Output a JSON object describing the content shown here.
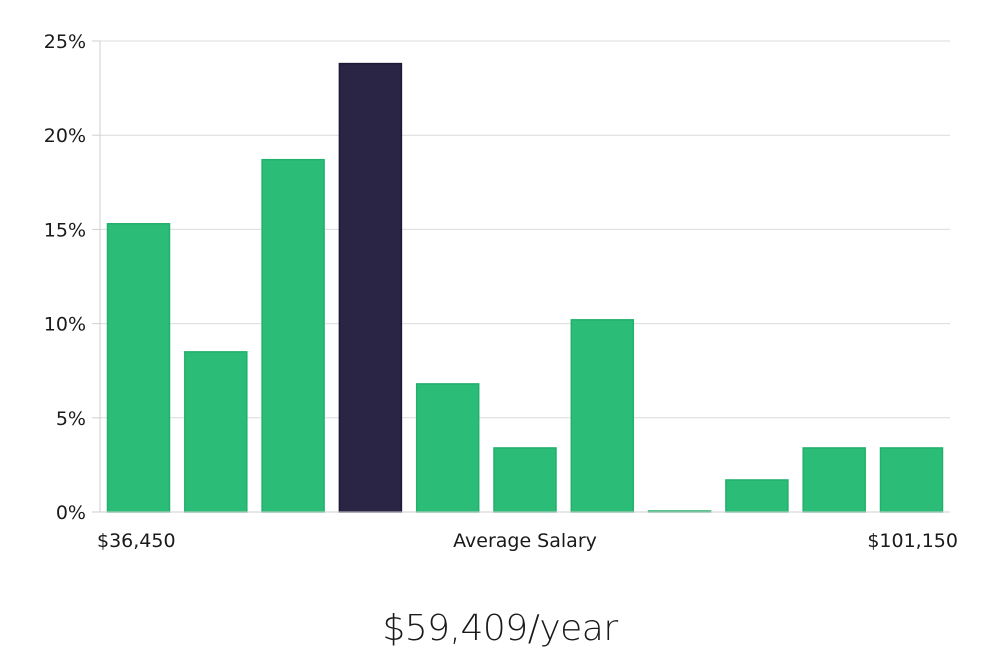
{
  "chart_data": {
    "type": "bar",
    "categories": [
      "",
      "",
      "",
      "",
      "",
      "",
      "",
      "",
      "",
      "",
      ""
    ],
    "values": [
      15.3,
      8.5,
      18.7,
      23.8,
      6.8,
      3.4,
      10.2,
      0.05,
      1.7,
      3.4,
      3.4
    ],
    "highlight_index": 3,
    "ylim": [
      0,
      25
    ],
    "yticks": [
      {
        "value": 0,
        "label": "0%"
      },
      {
        "value": 5,
        "label": "5%"
      },
      {
        "value": 10,
        "label": "10%"
      },
      {
        "value": 15,
        "label": "15%"
      },
      {
        "value": 20,
        "label": "20%"
      },
      {
        "value": 25,
        "label": "25%"
      }
    ],
    "x_min_label": "$36,450",
    "xlabel": "Average Salary",
    "x_max_label": "$101,150",
    "grid": true,
    "colors": {
      "bar": "#2bbd77",
      "bar_edge": "#22b06c",
      "highlight": "#2a2545",
      "highlight_edge": "#1c1838"
    }
  },
  "summary": {
    "salary": "$59,409/year"
  }
}
